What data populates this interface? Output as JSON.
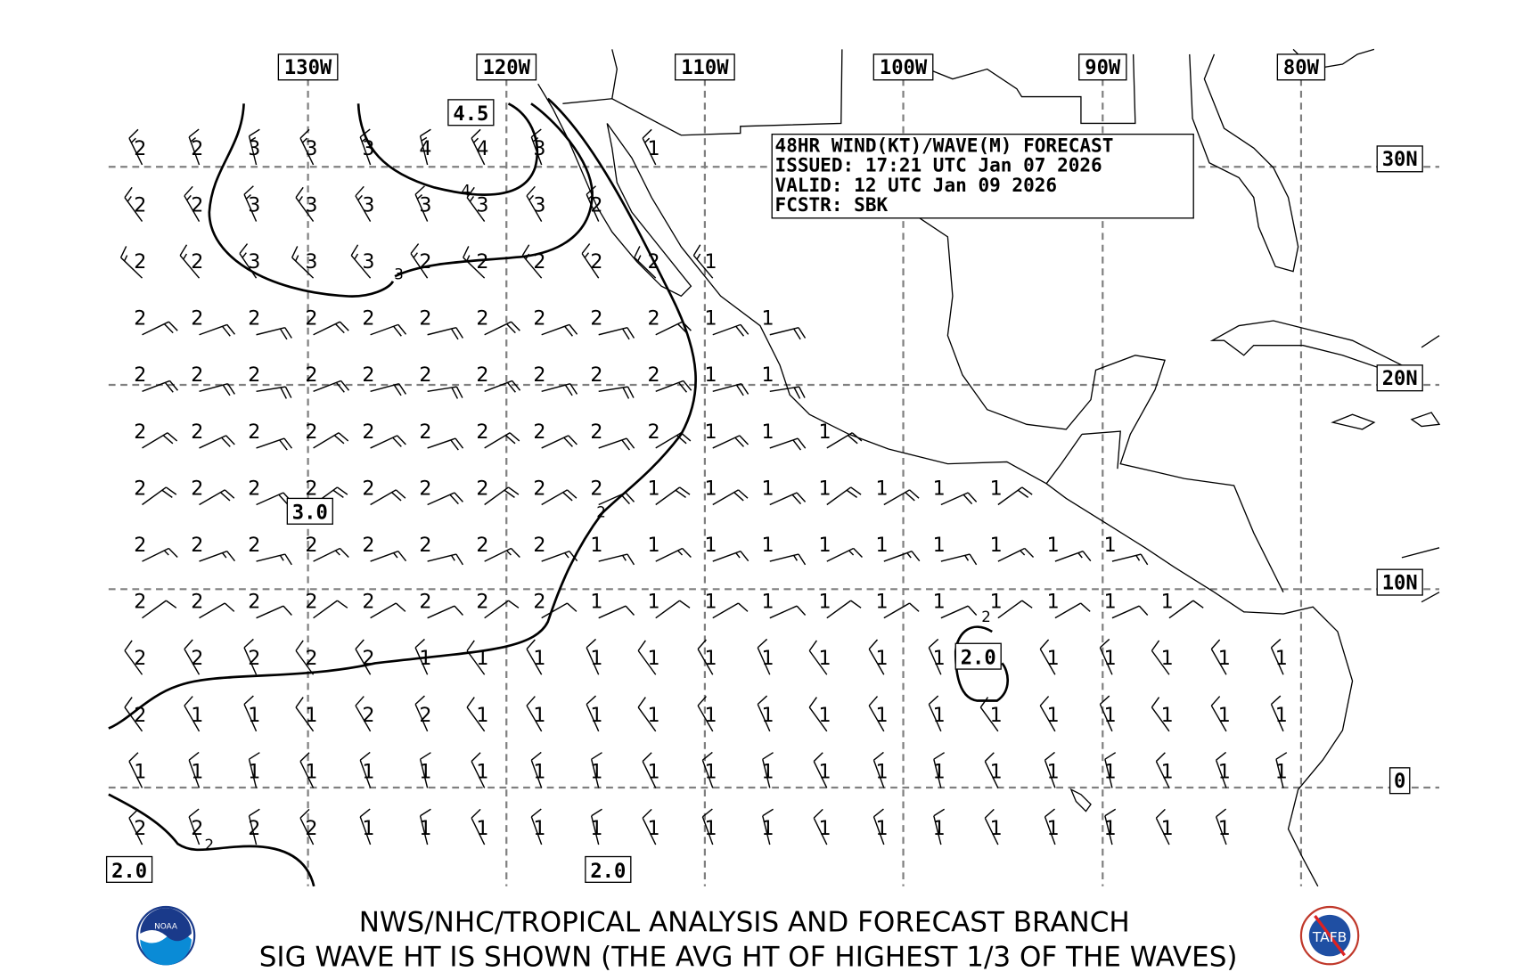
{
  "title_box": {
    "line1": "48HR WIND(KT)/WAVE(M) FORECAST",
    "line2": "ISSUED: 17:21 UTC Jan 07 2026",
    "line3": "VALID: 12 UTC Jan 09 2026",
    "line4": "FCSTR: SBK"
  },
  "lon_labels": [
    "130W",
    "120W",
    "110W",
    "100W",
    "90W",
    "80W"
  ],
  "lat_labels": [
    "30N",
    "20N",
    "10N",
    "0"
  ],
  "contour_labels": {
    "box_45": "4.5",
    "box_30": "3.0",
    "box_20_sw": "2.0",
    "box_20_s": "2.0",
    "box_20_e": "2.0",
    "small_4": "4",
    "small_3": "3",
    "small_2a": "2",
    "small_2b": "2",
    "small_2c": "2"
  },
  "footer": {
    "line1": "NWS/NHC/TROPICAL ANALYSIS AND FORECAST BRANCH",
    "line2": "SIG WAVE HT IS SHOWN (THE AVG HT OF HIGHEST 1/3 OF THE WAVES)"
  },
  "logos": {
    "left": "NOAA",
    "right": "TAFB"
  },
  "wave_grid": [
    [
      "2",
      "2",
      "3",
      "3",
      "3",
      "4",
      "4",
      "3",
      null,
      "1",
      null,
      null,
      null,
      null,
      null,
      null,
      null,
      null,
      null,
      null,
      null
    ],
    [
      "2",
      "2",
      "3",
      "3",
      "3",
      "3",
      "3",
      "3",
      "2",
      null,
      null,
      null,
      null,
      null,
      null,
      null,
      null,
      null,
      null,
      null,
      null
    ],
    [
      "2",
      "2",
      "3",
      "3",
      "3",
      "2",
      "2",
      "2",
      "2",
      "2",
      "1",
      null,
      null,
      null,
      null,
      null,
      null,
      null,
      null,
      null,
      null
    ],
    [
      "2",
      "2",
      "2",
      "2",
      "2",
      "2",
      "2",
      "2",
      "2",
      "2",
      "1",
      "1",
      null,
      null,
      null,
      null,
      null,
      null,
      null,
      null,
      null
    ],
    [
      "2",
      "2",
      "2",
      "2",
      "2",
      "2",
      "2",
      "2",
      "2",
      "2",
      "1",
      "1",
      null,
      null,
      null,
      null,
      null,
      null,
      null,
      null,
      null
    ],
    [
      "2",
      "2",
      "2",
      "2",
      "2",
      "2",
      "2",
      "2",
      "2",
      "2",
      "1",
      "1",
      "1",
      null,
      null,
      null,
      null,
      null,
      null,
      null,
      null
    ],
    [
      "2",
      "2",
      "2",
      "2",
      "2",
      "2",
      "2",
      "2",
      "2",
      "1",
      "1",
      "1",
      "1",
      "1",
      "1",
      "1",
      null,
      null,
      null,
      null,
      null
    ],
    [
      "2",
      "2",
      "2",
      "2",
      "2",
      "2",
      "2",
      "2",
      "1",
      "1",
      "1",
      "1",
      "1",
      "1",
      "1",
      "1",
      "1",
      "1",
      null,
      null,
      null
    ],
    [
      "2",
      "2",
      "2",
      "2",
      "2",
      "2",
      "2",
      "2",
      "1",
      "1",
      "1",
      "1",
      "1",
      "1",
      "1",
      "1",
      "1",
      "1",
      "1",
      null,
      null
    ],
    [
      "2",
      "2",
      "2",
      "2",
      "2",
      "1",
      "1",
      "1",
      "1",
      "1",
      "1",
      "1",
      "1",
      "1",
      "1",
      null,
      "1",
      "1",
      "1",
      "1",
      "1"
    ],
    [
      "2",
      "1",
      "1",
      "1",
      "2",
      "2",
      "1",
      "1",
      "1",
      "1",
      "1",
      "1",
      "1",
      "1",
      "1",
      "1",
      "1",
      "1",
      "1",
      "1",
      "1"
    ],
    [
      "1",
      "1",
      "1",
      "1",
      "1",
      "1",
      "1",
      "1",
      "1",
      "1",
      "1",
      "1",
      "1",
      "1",
      "1",
      "1",
      "1",
      "1",
      "1",
      "1",
      "1"
    ],
    [
      "2",
      "2",
      "2",
      "2",
      "1",
      "1",
      "1",
      "1",
      "1",
      "1",
      "1",
      "1",
      "1",
      "1",
      "1",
      "1",
      "1",
      "1",
      "1",
      "1",
      null
    ]
  ],
  "wind_rows": [
    {
      "dir_deg": 340,
      "speed_kt": 15
    },
    {
      "dir_deg": 330,
      "speed_kt": 15
    },
    {
      "dir_deg": 320,
      "speed_kt": 15
    },
    {
      "dir_deg": 70,
      "speed_kt": 20
    },
    {
      "dir_deg": 75,
      "speed_kt": 20
    },
    {
      "dir_deg": 65,
      "speed_kt": 20
    },
    {
      "dir_deg": 60,
      "speed_kt": 20
    },
    {
      "dir_deg": 70,
      "speed_kt": 15
    },
    {
      "dir_deg": 60,
      "speed_kt": 10
    },
    {
      "dir_deg": 330,
      "speed_kt": 10
    },
    {
      "dir_deg": 330,
      "speed_kt": 10
    },
    {
      "dir_deg": 340,
      "speed_kt": 10
    },
    {
      "dir_deg": 340,
      "speed_kt": 10
    }
  ]
}
